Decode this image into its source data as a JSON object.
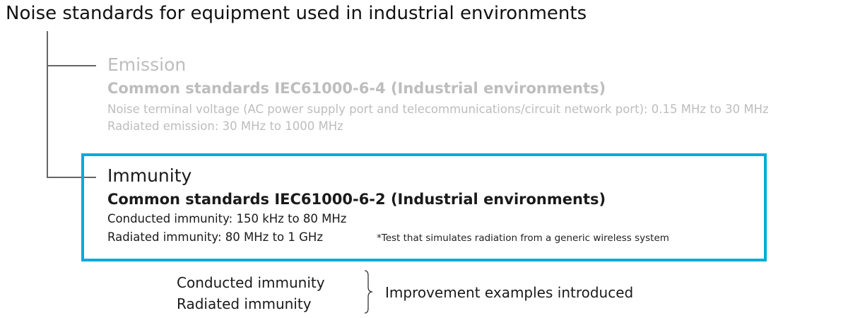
{
  "title": "Noise standards for equipment used in industrial environments",
  "emission": {
    "heading": "Emission",
    "standard": "Common standards IEC61000-6-4 (Industrial environments)",
    "lines": [
      "Noise terminal voltage (AC power supply port and telecommunications/circuit network port): 0.15 MHz to 30 MHz",
      "Radiated emission: 30 MHz to 1000 MHz"
    ]
  },
  "immunity": {
    "heading": "Immunity",
    "standard": "Common standards IEC61000-6-2 (Industrial environments)",
    "lines": [
      "Conducted immunity: 150 kHz to 80 MHz",
      "Radiated immunity: 80 MHz to 1 GHz"
    ],
    "footnote": "*Test that simulates radiation from a generic wireless system",
    "highlight_color": "#00abd8"
  },
  "summary": {
    "items": [
      "Conducted immunity",
      "Radiated immunity"
    ],
    "result": "Improvement examples introduced"
  }
}
